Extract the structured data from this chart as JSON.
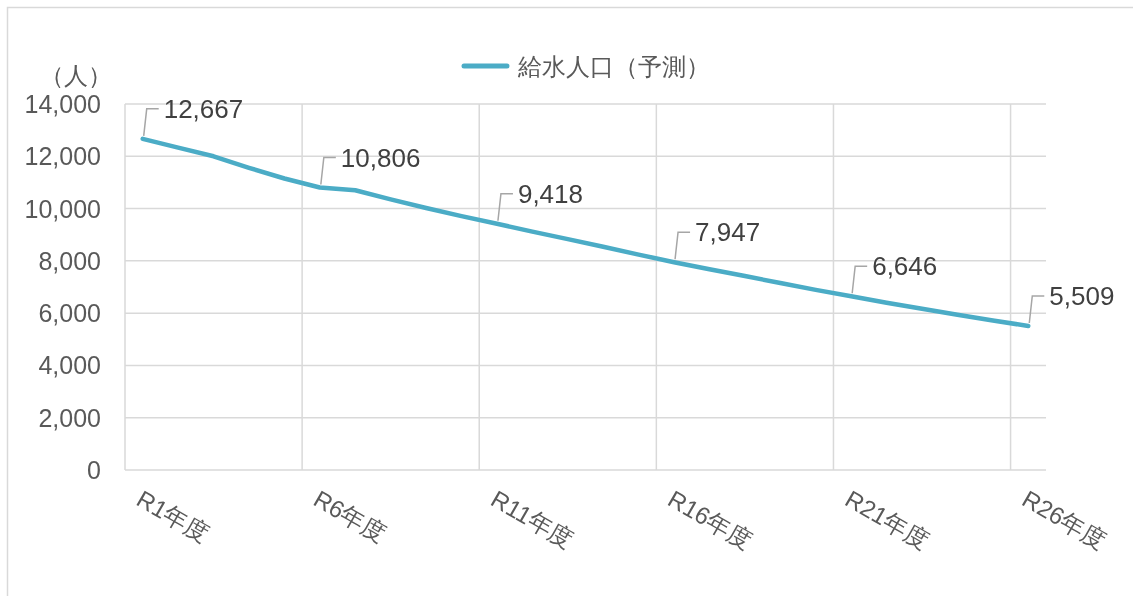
{
  "chart_data": {
    "type": "line",
    "legend": "top",
    "grid": true,
    "ylabel": "（人）",
    "categories": [
      "R1年度",
      null,
      null,
      null,
      null,
      "R6年度",
      null,
      null,
      null,
      null,
      "R11年度",
      null,
      null,
      null,
      null,
      "R16年度",
      null,
      null,
      null,
      null,
      "R21年度",
      null,
      null,
      null,
      null,
      "R26年度"
    ],
    "series": [
      {
        "name": "給水人口（予測）",
        "color": "#4bacc6",
        "values": [
          12667,
          12330,
          12000,
          11560,
          11150,
          10806,
          10700,
          10350,
          10020,
          9710,
          9418,
          9120,
          8830,
          8540,
          8240,
          7947,
          7680,
          7420,
          7150,
          6890,
          6646,
          6400,
          6170,
          5940,
          5720,
          5509
        ],
        "value_labels": [
          "12,667",
          null,
          null,
          null,
          null,
          "10,806",
          null,
          null,
          null,
          null,
          "9,418",
          null,
          null,
          null,
          null,
          "7,947",
          null,
          null,
          null,
          null,
          "6,646",
          null,
          null,
          null,
          null,
          "5,509"
        ]
      }
    ],
    "ylim": [
      0,
      14000
    ],
    "yticks": [
      0,
      {
        "value": 2000,
        "label": "2,000"
      },
      {
        "value": 4000,
        "label": "4,000"
      },
      {
        "value": 6000,
        "label": "6,000"
      },
      {
        "value": 8000,
        "label": "8,000"
      },
      {
        "value": 10000,
        "label": "10,000"
      },
      {
        "value": 12000,
        "label": "12,000"
      },
      {
        "value": 14000,
        "label": "14,000"
      }
    ]
  }
}
